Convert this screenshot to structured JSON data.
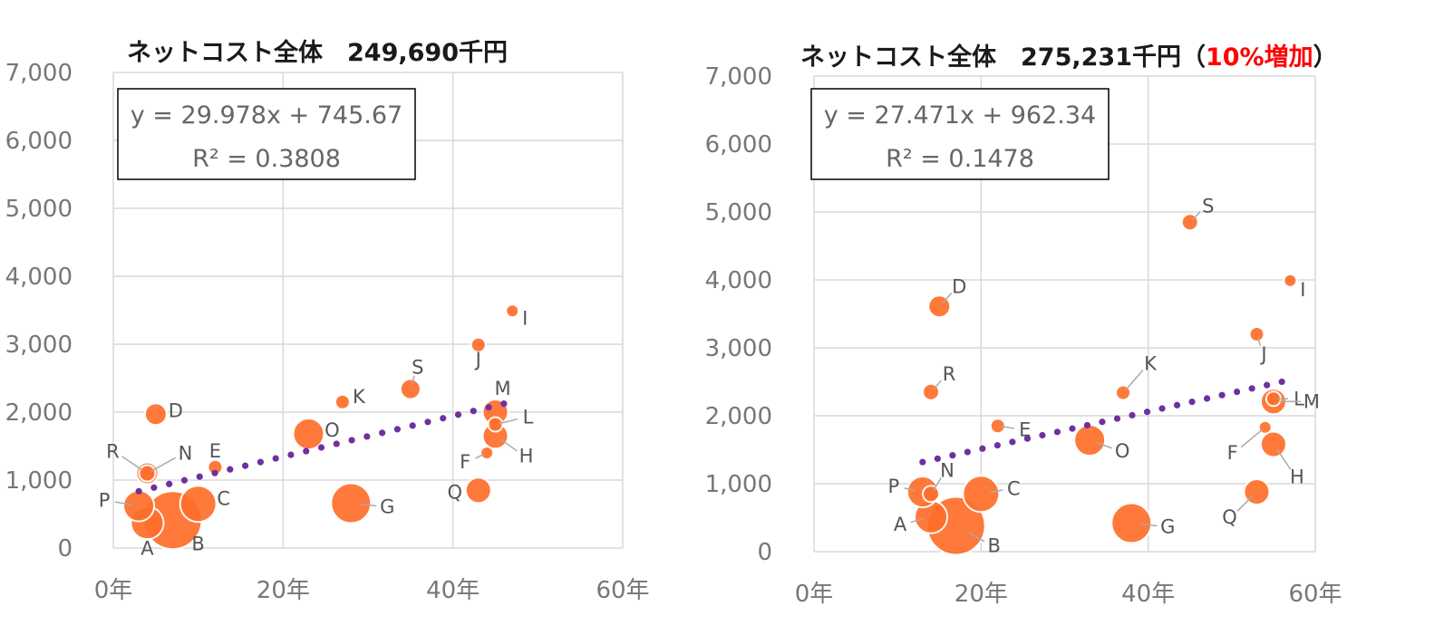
{
  "chart_data": [
    {
      "type": "bubble",
      "title": "ネットコスト全体　249,690千円",
      "title_parts": [
        {
          "text": "ネットコスト全体　249,690千円",
          "color": "#1a1a1a"
        }
      ],
      "x_ticks": [
        "0年",
        "20年",
        "40年",
        "60年"
      ],
      "y_ticks": [
        "0",
        "1,000",
        "2,000",
        "3,000",
        "4,000",
        "5,000",
        "6,000",
        "7,000"
      ],
      "xlim": [
        0,
        60
      ],
      "ylim": [
        0,
        7000
      ],
      "grid": true,
      "equation": "y = 29.978x + 745.67",
      "r_squared": "R² = 0.3808",
      "trendline": {
        "slope": 29.978,
        "intercept": 745.67,
        "x_range": [
          3,
          46
        ],
        "style": "dotted",
        "color": "#7030a0"
      },
      "bubble_color": "#ff6f2c",
      "points": [
        {
          "label": "A",
          "x": 4,
          "y": 370,
          "size": 18
        },
        {
          "label": "B",
          "x": 7,
          "y": 410,
          "size": 32
        },
        {
          "label": "C",
          "x": 10,
          "y": 650,
          "size": 20
        },
        {
          "label": "D",
          "x": 5,
          "y": 1970,
          "size": 12
        },
        {
          "label": "E",
          "x": 12,
          "y": 1190,
          "size": 8
        },
        {
          "label": "F",
          "x": 44,
          "y": 1400,
          "size": 7
        },
        {
          "label": "G",
          "x": 28,
          "y": 660,
          "size": 22
        },
        {
          "label": "H",
          "x": 45,
          "y": 1650,
          "size": 14
        },
        {
          "label": "I",
          "x": 47,
          "y": 3490,
          "size": 7
        },
        {
          "label": "J",
          "x": 43,
          "y": 2990,
          "size": 8
        },
        {
          "label": "K",
          "x": 27,
          "y": 2150,
          "size": 8
        },
        {
          "label": "L",
          "x": 45,
          "y": 1820,
          "size": 8
        },
        {
          "label": "M",
          "x": 45,
          "y": 2000,
          "size": 14
        },
        {
          "label": "N",
          "x": 4,
          "y": 1100,
          "size": 9
        },
        {
          "label": "O",
          "x": 23,
          "y": 1680,
          "size": 17
        },
        {
          "label": "P",
          "x": 3,
          "y": 620,
          "size": 17
        },
        {
          "label": "Q",
          "x": 43,
          "y": 850,
          "size": 14
        },
        {
          "label": "R",
          "x": 4,
          "y": 1100,
          "size": 12
        },
        {
          "label": "S",
          "x": 35,
          "y": 2340,
          "size": 11
        }
      ]
    },
    {
      "type": "bubble",
      "title": "ネットコスト全体　275,231千円（10%増加）",
      "title_parts": [
        {
          "text": "ネットコスト全体　275,231千円（",
          "color": "#1a1a1a"
        },
        {
          "text": "10%増加",
          "color": "#ff0000"
        },
        {
          "text": "）",
          "color": "#1a1a1a"
        }
      ],
      "x_ticks": [
        "0年",
        "20年",
        "40年",
        "60年"
      ],
      "y_ticks": [
        "0",
        "1,000",
        "2,000",
        "3,000",
        "4,000",
        "5,000",
        "6,000",
        "7,000"
      ],
      "xlim": [
        0,
        60
      ],
      "ylim": [
        0,
        7000
      ],
      "grid": true,
      "equation": "y = 27.471x + 962.34",
      "r_squared": "R² = 0.1478",
      "trendline": {
        "slope": 27.471,
        "intercept": 962.34,
        "x_range": [
          13,
          56
        ],
        "style": "dotted",
        "color": "#7030a0"
      },
      "bubble_color": "#ff6f2c",
      "points": [
        {
          "label": "A",
          "x": 14,
          "y": 510,
          "size": 18
        },
        {
          "label": "B",
          "x": 17,
          "y": 380,
          "size": 32
        },
        {
          "label": "C",
          "x": 20,
          "y": 850,
          "size": 20
        },
        {
          "label": "D",
          "x": 15,
          "y": 3610,
          "size": 12
        },
        {
          "label": "E",
          "x": 22,
          "y": 1850,
          "size": 8
        },
        {
          "label": "F",
          "x": 54,
          "y": 1830,
          "size": 7
        },
        {
          "label": "G",
          "x": 38,
          "y": 420,
          "size": 22
        },
        {
          "label": "H",
          "x": 55,
          "y": 1580,
          "size": 14
        },
        {
          "label": "I",
          "x": 57,
          "y": 3990,
          "size": 7
        },
        {
          "label": "J",
          "x": 53,
          "y": 3200,
          "size": 8
        },
        {
          "label": "K",
          "x": 37,
          "y": 2340,
          "size": 8
        },
        {
          "label": "L",
          "x": 55,
          "y": 2250,
          "size": 8
        },
        {
          "label": "M",
          "x": 55,
          "y": 2210,
          "size": 14
        },
        {
          "label": "N",
          "x": 14,
          "y": 850,
          "size": 9
        },
        {
          "label": "O",
          "x": 33,
          "y": 1640,
          "size": 17
        },
        {
          "label": "P",
          "x": 13,
          "y": 880,
          "size": 17
        },
        {
          "label": "Q",
          "x": 53,
          "y": 880,
          "size": 14
        },
        {
          "label": "R",
          "x": 14,
          "y": 2350,
          "size": 9
        },
        {
          "label": "S",
          "x": 45,
          "y": 4850,
          "size": 9
        }
      ]
    }
  ]
}
